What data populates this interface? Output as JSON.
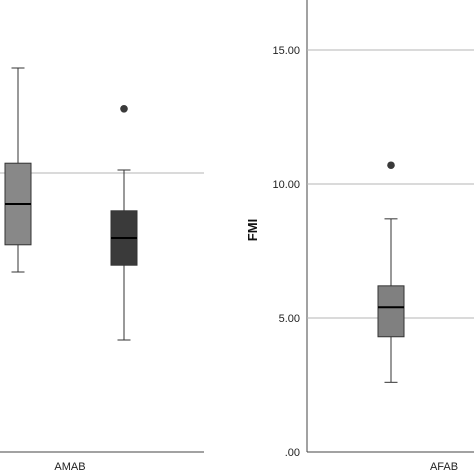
{
  "chart_data": [
    {
      "type": "box",
      "title": "",
      "xlabel": "",
      "ylabel": "",
      "categories": [
        "AMAB"
      ],
      "grid": "horizontal reference line",
      "series": [
        {
          "label": "",
          "min": 50,
          "q1": 58,
          "median": 70,
          "q3": 82,
          "max": 110,
          "outliers": [],
          "color": "#888888"
        },
        {
          "label": "",
          "min": 30,
          "q1": 52,
          "median": 60,
          "q3": 68,
          "max": 80,
          "outliers": [
            98
          ],
          "color": "#3a3a3a"
        }
      ],
      "reference_line": 88
    },
    {
      "type": "box",
      "title": "",
      "xlabel": "",
      "ylabel": "FMI",
      "categories": [
        "AFAB"
      ],
      "ylim": [
        0,
        17
      ],
      "yticks": [
        ".00",
        "5.00",
        "10.00",
        "15.00"
      ],
      "grid": "horizontal at 5, 10, 15",
      "series": [
        {
          "label": "",
          "min": 2.6,
          "q1": 4.3,
          "median": 5.4,
          "q3": 6.2,
          "max": 8.7,
          "outliers": [
            10.7
          ],
          "color": "#808080"
        }
      ]
    }
  ]
}
